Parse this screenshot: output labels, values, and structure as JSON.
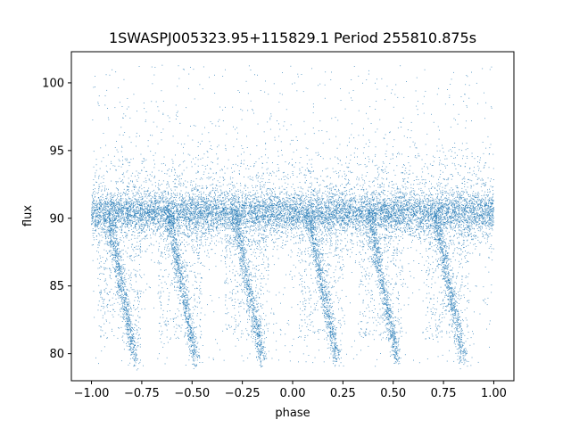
{
  "chart_data": {
    "type": "scatter",
    "title": "1SWASPJ005323.95+115829.1 Period 255810.875s",
    "xlabel": "phase",
    "ylabel": "flux",
    "xlim": [
      -1.1,
      1.1
    ],
    "ylim": [
      78,
      102.3
    ],
    "x_ticks": [
      -1.0,
      -0.75,
      -0.5,
      -0.25,
      0.0,
      0.25,
      0.5,
      0.75,
      1.0
    ],
    "x_tick_labels": [
      "−1.00",
      "−0.75",
      "−0.50",
      "−0.25",
      "0.00",
      "0.25",
      "0.50",
      "0.75",
      "1.00"
    ],
    "y_ticks": [
      80,
      85,
      90,
      95,
      100
    ],
    "y_tick_labels": [
      "80",
      "85",
      "90",
      "95",
      "100"
    ],
    "grid": false,
    "marker_color": "#1f77b4",
    "series": [
      {
        "baseline_flux": 90.4,
        "phase_range": [
          -1.0,
          1.0
        ],
        "eclipse_phases": [
          -0.85,
          -0.55,
          -0.22,
          0.15,
          0.45,
          0.78
        ],
        "eclipse_min_flux": 79.5,
        "outlier_flux_range": [
          79,
          101.3
        ]
      }
    ]
  }
}
